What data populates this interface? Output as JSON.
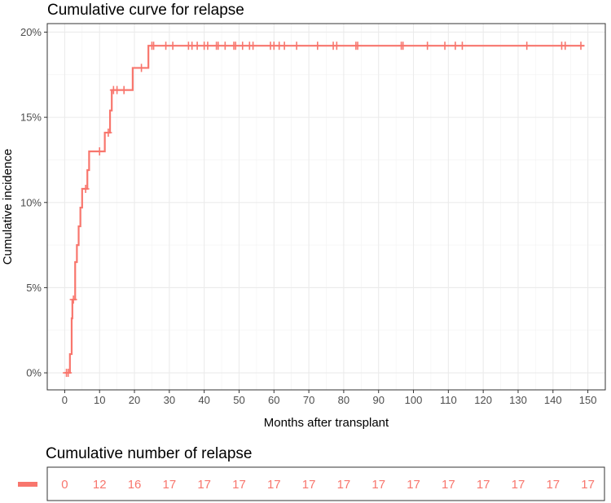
{
  "chart_data": [
    {
      "type": "line",
      "title": "Cumulative curve for relapse",
      "xlabel": "Months after transplant",
      "ylabel": "Cumulative incidence",
      "xlim": [
        -5,
        155
      ],
      "ylim": [
        -1,
        20.5
      ],
      "x_ticks": [
        0,
        10,
        20,
        30,
        40,
        50,
        60,
        70,
        80,
        90,
        100,
        110,
        120,
        130,
        140,
        150
      ],
      "x_tick_labels": [
        "0",
        "10",
        "20",
        "30",
        "40",
        "50",
        "60",
        "70",
        "80",
        "90",
        "100",
        "110",
        "120",
        "130",
        "140",
        "150"
      ],
      "y_ticks": [
        0,
        5,
        10,
        15,
        20
      ],
      "y_tick_labels": [
        "0%",
        "5%",
        "10%",
        "15%",
        "20%"
      ],
      "grid": true,
      "series_color": "#F8766D",
      "series": [
        {
          "step": [
            [
              0,
              0
            ],
            [
              1.5,
              0
            ],
            [
              1.5,
              1.1
            ],
            [
              2,
              1.1
            ],
            [
              2,
              3.2
            ],
            [
              2.2,
              3.2
            ],
            [
              2.2,
              4.3
            ],
            [
              3,
              4.3
            ],
            [
              3,
              6.5
            ],
            [
              3.5,
              6.5
            ],
            [
              3.5,
              7.5
            ],
            [
              4,
              7.5
            ],
            [
              4,
              8.6
            ],
            [
              4.5,
              8.6
            ],
            [
              4.5,
              9.7
            ],
            [
              5,
              9.7
            ],
            [
              5,
              10.8
            ],
            [
              6.5,
              10.8
            ],
            [
              6.5,
              11.9
            ],
            [
              7,
              11.9
            ],
            [
              7,
              13.0
            ],
            [
              11.5,
              13.0
            ],
            [
              11.5,
              14.1
            ],
            [
              13,
              14.1
            ],
            [
              13,
              15.4
            ],
            [
              13.5,
              15.4
            ],
            [
              13.5,
              16.6
            ],
            [
              19.5,
              16.6
            ],
            [
              19.5,
              17.9
            ],
            [
              24,
              17.9
            ],
            [
              24,
              19.2
            ],
            [
              149,
              19.2
            ]
          ],
          "censor_marks": [
            [
              0.5,
              0
            ],
            [
              1,
              0
            ],
            [
              2.5,
              4.3
            ],
            [
              6,
              10.8
            ],
            [
              10,
              13.0
            ],
            [
              12.5,
              14.1
            ],
            [
              14,
              16.6
            ],
            [
              15,
              16.6
            ],
            [
              17,
              16.6
            ],
            [
              22,
              17.9
            ],
            [
              25,
              19.2
            ],
            [
              25.5,
              19.2
            ],
            [
              29,
              19.2
            ],
            [
              31,
              19.2
            ],
            [
              35.5,
              19.2
            ],
            [
              36.5,
              19.2
            ],
            [
              38,
              19.2
            ],
            [
              40,
              19.2
            ],
            [
              41,
              19.2
            ],
            [
              43.5,
              19.2
            ],
            [
              44,
              19.2
            ],
            [
              46,
              19.2
            ],
            [
              48.5,
              19.2
            ],
            [
              49,
              19.2
            ],
            [
              51,
              19.2
            ],
            [
              53,
              19.2
            ],
            [
              54,
              19.2
            ],
            [
              59,
              19.2
            ],
            [
              60,
              19.2
            ],
            [
              61.5,
              19.2
            ],
            [
              63,
              19.2
            ],
            [
              66.5,
              19.2
            ],
            [
              72.5,
              19.2
            ],
            [
              77,
              19.2
            ],
            [
              78,
              19.2
            ],
            [
              83.5,
              19.2
            ],
            [
              84,
              19.2
            ],
            [
              96.5,
              19.2
            ],
            [
              97,
              19.2
            ],
            [
              104,
              19.2
            ],
            [
              109,
              19.2
            ],
            [
              112,
              19.2
            ],
            [
              114,
              19.2
            ],
            [
              132.5,
              19.2
            ],
            [
              142.5,
              19.2
            ],
            [
              143.5,
              19.2
            ],
            [
              148,
              19.2
            ]
          ]
        }
      ]
    },
    {
      "type": "table",
      "title": "Cumulative number of relapse",
      "x": [
        0,
        10,
        20,
        30,
        40,
        50,
        60,
        70,
        80,
        90,
        100,
        110,
        120,
        130,
        140,
        150
      ],
      "values": [
        0,
        12,
        16,
        17,
        17,
        17,
        17,
        17,
        17,
        17,
        17,
        17,
        17,
        17,
        17,
        17
      ],
      "color": "#F8766D"
    }
  ]
}
